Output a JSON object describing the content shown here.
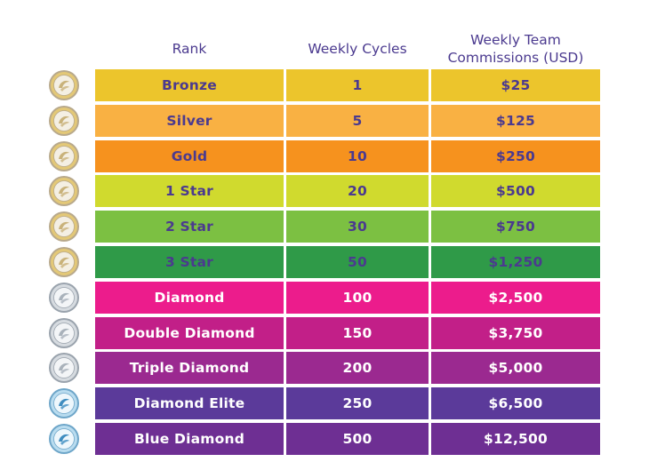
{
  "header": {
    "rank_label": "Rank",
    "cycles_label": "Weekly Cycles",
    "commissions_label": "Weekly Team\nCommissions (USD)"
  },
  "rows": [
    {
      "rank": "Bronze",
      "cycles": "1",
      "commission": "$25",
      "bg": "#ecc52c",
      "fg": "#4b3a8f",
      "medal": "gold"
    },
    {
      "rank": "Silver",
      "cycles": "5",
      "commission": "$125",
      "bg": "#f9b143",
      "fg": "#4b3a8f",
      "medal": "gold"
    },
    {
      "rank": "Gold",
      "cycles": "10",
      "commission": "$250",
      "bg": "#f6921e",
      "fg": "#4b3a8f",
      "medal": "gold"
    },
    {
      "rank": "1 Star",
      "cycles": "20",
      "commission": "$500",
      "bg": "#d0da2e",
      "fg": "#4b3a8f",
      "medal": "gold"
    },
    {
      "rank": "2 Star",
      "cycles": "30",
      "commission": "$750",
      "bg": "#7cc042",
      "fg": "#4b3a8f",
      "medal": "gold"
    },
    {
      "rank": "3 Star",
      "cycles": "50",
      "commission": "$1,250",
      "bg": "#2f9a48",
      "fg": "#4b3a8f",
      "medal": "gold"
    },
    {
      "rank": "Diamond",
      "cycles": "100",
      "commission": "$2,500",
      "bg": "#ec1c8c",
      "fg": "#ffffff",
      "medal": "silver"
    },
    {
      "rank": "Double Diamond",
      "cycles": "150",
      "commission": "$3,750",
      "bg": "#c21f88",
      "fg": "#ffffff",
      "medal": "silver"
    },
    {
      "rank": "Triple Diamond",
      "cycles": "200",
      "commission": "$5,000",
      "bg": "#9b2990",
      "fg": "#ffffff",
      "medal": "silver"
    },
    {
      "rank": "Diamond Elite",
      "cycles": "250",
      "commission": "$6,500",
      "bg": "#5b3a9a",
      "fg": "#ffffff",
      "medal": "blue"
    },
    {
      "rank": "Blue Diamond",
      "cycles": "500",
      "commission": "$12,500",
      "bg": "#6e2f93",
      "fg": "#ffffff",
      "medal": "blue"
    }
  ]
}
